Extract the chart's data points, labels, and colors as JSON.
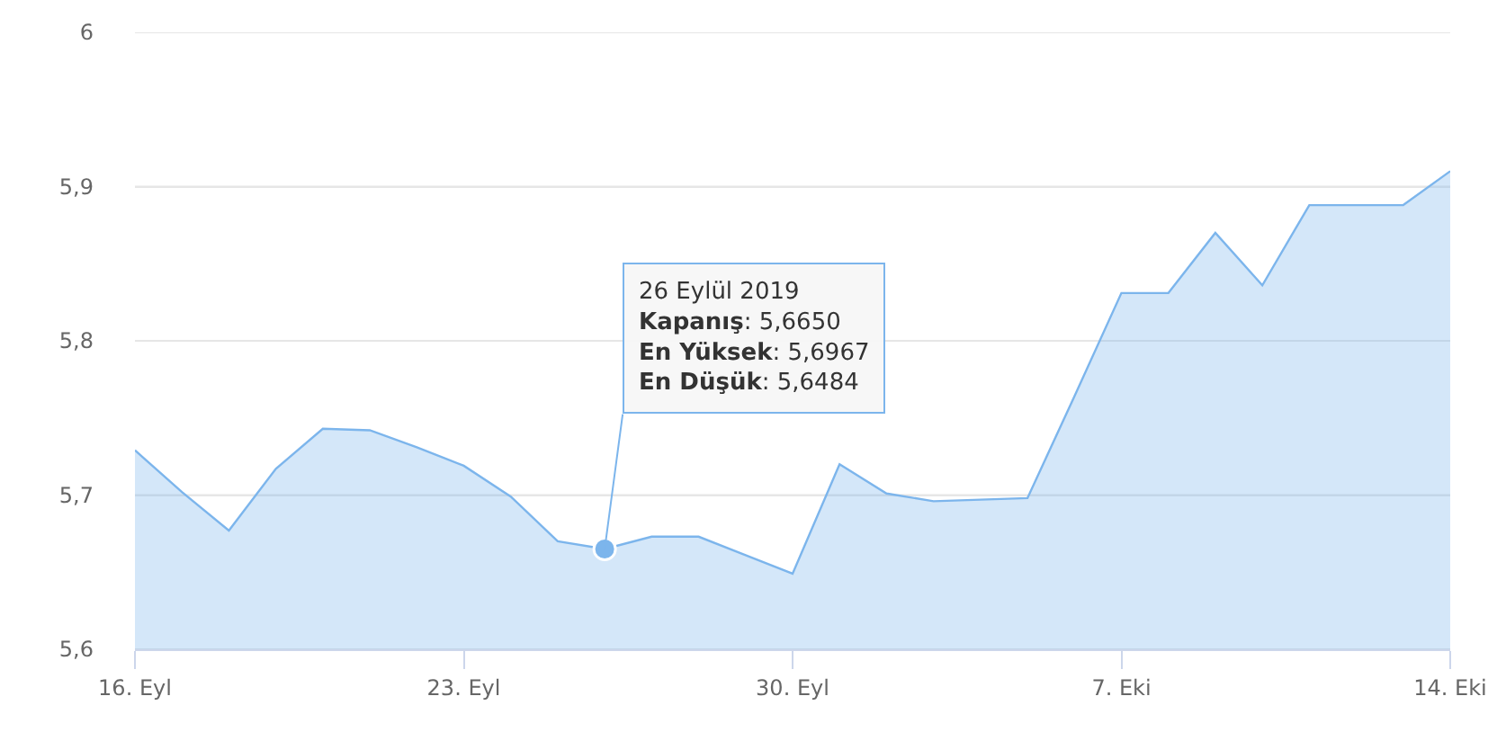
{
  "chart_data": {
    "type": "area",
    "x": [
      "2019-09-16",
      "2019-09-17",
      "2019-09-18",
      "2019-09-19",
      "2019-09-20",
      "2019-09-21",
      "2019-09-22",
      "2019-09-23",
      "2019-09-24",
      "2019-09-25",
      "2019-09-26",
      "2019-09-27",
      "2019-09-28",
      "2019-09-29",
      "2019-09-30",
      "2019-10-01",
      "2019-10-02",
      "2019-10-03",
      "2019-10-04",
      "2019-10-05",
      "2019-10-06",
      "2019-10-07",
      "2019-10-08",
      "2019-10-09",
      "2019-10-10",
      "2019-10-11",
      "2019-10-12",
      "2019-10-13",
      "2019-10-14"
    ],
    "series": [
      {
        "color": "#7cb5ec",
        "values": [
          5.729,
          5.702,
          5.677,
          5.717,
          5.743,
          5.742,
          5.731,
          5.719,
          5.699,
          5.67,
          5.665,
          5.673,
          5.673,
          5.661,
          5.649,
          5.72,
          5.701,
          5.696,
          5.697,
          5.698,
          5.764,
          5.831,
          5.831,
          5.87,
          5.836,
          5.888,
          5.888,
          5.888,
          5.91
        ]
      }
    ],
    "xlim": [
      "2019-09-16",
      "2019-10-14"
    ],
    "xticks": [
      {
        "value": "2019-09-16",
        "label": "16. Eyl"
      },
      {
        "value": "2019-09-23",
        "label": "23. Eyl"
      },
      {
        "value": "2019-09-30",
        "label": "30. Eyl"
      },
      {
        "value": "2019-10-07",
        "label": "7. Eki"
      },
      {
        "value": "2019-10-14",
        "label": "14. Eki"
      }
    ],
    "ylim": [
      5.6,
      6
    ],
    "yticks": [
      {
        "value": 5.6,
        "label": "5,6"
      },
      {
        "value": 5.7,
        "label": "5,7"
      },
      {
        "value": 5.8,
        "label": "5,8"
      },
      {
        "value": 5.9,
        "label": "5,9"
      },
      {
        "value": 6,
        "label": "6"
      }
    ],
    "grid": "y",
    "marker": "none",
    "annotations": [
      {
        "text": "26 Eylül 2019\nKapanış: 5,6650\nEn Yüksek: 5,6967\nEn Düşük: 5,6484",
        "x": "2019-09-26",
        "y": 5.665
      }
    ]
  }
}
